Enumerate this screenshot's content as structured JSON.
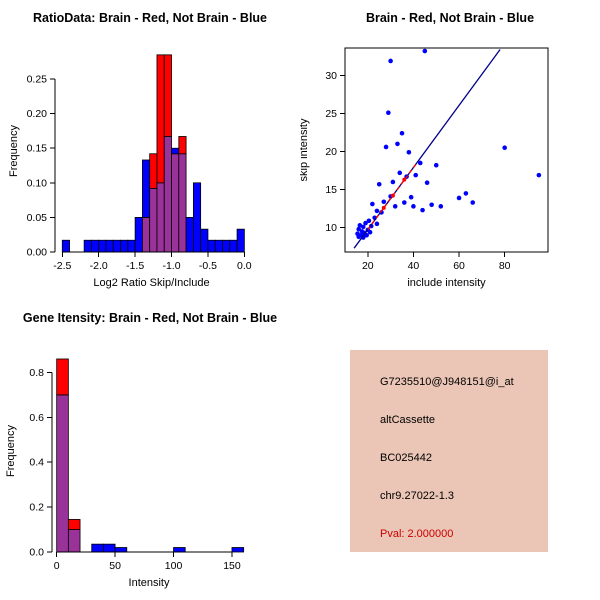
{
  "page": {
    "background": "#ffffff"
  },
  "colors": {
    "brain_red": "#FF0000",
    "not_brain_blue": "#0000FF",
    "overlap_purple": "#993299",
    "fit_line_navy": "#00008B",
    "pval_red": "#CC0000",
    "info_panel_bg": "#EBC6B6",
    "axis_black": "#000000"
  },
  "chart_data": [
    {
      "type": "bar",
      "variant": "overlapping-histograms",
      "title": "RatioData: Brain - Red, Not Brain - Blue",
      "xlabel": "Log2 Ratio Skip/Include",
      "ylabel": "Frequency",
      "xlim": [
        -2.6,
        0.05
      ],
      "ylim": [
        0,
        0.292
      ],
      "bin_width": 0.1,
      "xticks": [
        {
          "v": -2.5,
          "label": "-2.5"
        },
        {
          "v": -2.0,
          "label": "-2.0"
        },
        {
          "v": -1.5,
          "label": "-1.5"
        },
        {
          "v": -1.0,
          "label": "-1.0"
        },
        {
          "v": -0.5,
          "label": "-0.5"
        },
        {
          "v": 0.0,
          "label": "0.0"
        }
      ],
      "yticks": [
        {
          "v": 0.0,
          "label": "0.00"
        },
        {
          "v": 0.05,
          "label": "0.05"
        },
        {
          "v": 0.1,
          "label": "0.10"
        },
        {
          "v": 0.15,
          "label": "0.15"
        },
        {
          "v": 0.2,
          "label": "0.20"
        },
        {
          "v": 0.25,
          "label": "0.25"
        }
      ],
      "bins": [
        {
          "x": -2.5,
          "blue": 0.017,
          "red": 0
        },
        {
          "x": -2.2,
          "blue": 0.017,
          "red": 0
        },
        {
          "x": -2.1,
          "blue": 0.017,
          "red": 0
        },
        {
          "x": -2.0,
          "blue": 0.017,
          "red": 0
        },
        {
          "x": -1.9,
          "blue": 0.017,
          "red": 0
        },
        {
          "x": -1.8,
          "blue": 0.017,
          "red": 0
        },
        {
          "x": -1.7,
          "blue": 0.017,
          "red": 0
        },
        {
          "x": -1.6,
          "blue": 0.017,
          "red": 0
        },
        {
          "x": -1.5,
          "blue": 0.05,
          "red": 0
        },
        {
          "x": -1.4,
          "blue": 0.133,
          "red": 0.05
        },
        {
          "x": -1.3,
          "blue": 0.092,
          "red": 0.142
        },
        {
          "x": -1.2,
          "blue": 0.1,
          "red": 0.285
        },
        {
          "x": -1.1,
          "blue": 0.167,
          "red": 0.285
        },
        {
          "x": -1.0,
          "blue": 0.15,
          "red": 0.142
        },
        {
          "x": -0.9,
          "blue": 0.142,
          "red": 0.167
        },
        {
          "x": -0.8,
          "blue": 0.05,
          "red": 0
        },
        {
          "x": -0.7,
          "blue": 0.1,
          "red": 0
        },
        {
          "x": -0.6,
          "blue": 0.033,
          "red": 0
        },
        {
          "x": -0.5,
          "blue": 0.017,
          "red": 0
        },
        {
          "x": -0.4,
          "blue": 0.017,
          "red": 0
        },
        {
          "x": -0.3,
          "blue": 0.017,
          "red": 0
        },
        {
          "x": -0.2,
          "blue": 0.017,
          "red": 0
        },
        {
          "x": -0.1,
          "blue": 0.033,
          "red": 0
        }
      ]
    },
    {
      "type": "scatter",
      "title": "Brain - Red, Not Brain - Blue",
      "xlabel": "include intensity",
      "ylabel": "skip intensity",
      "xlim": [
        10,
        99
      ],
      "ylim": [
        6.8,
        33.6
      ],
      "box": true,
      "xticks": [
        {
          "v": 20,
          "label": "20"
        },
        {
          "v": 40,
          "label": "40"
        },
        {
          "v": 60,
          "label": "60"
        },
        {
          "v": 80,
          "label": "80"
        }
      ],
      "yticks": [
        {
          "v": 10,
          "label": "10"
        },
        {
          "v": 15,
          "label": "15"
        },
        {
          "v": 20,
          "label": "20"
        },
        {
          "v": 25,
          "label": "25"
        },
        {
          "v": 30,
          "label": "30"
        }
      ],
      "blue_points": [
        [
          15.5,
          9.2
        ],
        [
          16,
          8.8
        ],
        [
          16,
          9.8
        ],
        [
          16.5,
          10.3
        ],
        [
          17,
          9.0
        ],
        [
          17.5,
          9.5
        ],
        [
          18,
          8.7
        ],
        [
          18,
          10.1
        ],
        [
          18.5,
          9.3
        ],
        [
          19,
          10.6
        ],
        [
          19.5,
          9.0
        ],
        [
          20,
          9.7
        ],
        [
          20.5,
          10.9
        ],
        [
          21,
          9.4
        ],
        [
          21.5,
          10.2
        ],
        [
          22,
          13.1
        ],
        [
          23,
          11.3
        ],
        [
          24,
          10.5
        ],
        [
          24,
          12.2
        ],
        [
          25,
          15.7
        ],
        [
          26,
          12.0
        ],
        [
          27,
          13.4
        ],
        [
          28,
          20.6
        ],
        [
          29,
          25.1
        ],
        [
          30,
          31.9
        ],
        [
          30,
          14.1
        ],
        [
          31,
          16.0
        ],
        [
          32,
          12.8
        ],
        [
          33,
          21.0
        ],
        [
          34,
          17.2
        ],
        [
          35,
          22.4
        ],
        [
          36,
          13.3
        ],
        [
          37,
          16.7
        ],
        [
          38,
          19.9
        ],
        [
          39,
          14.0
        ],
        [
          40,
          12.8
        ],
        [
          41,
          16.9
        ],
        [
          43,
          18.5
        ],
        [
          44,
          12.3
        ],
        [
          45,
          33.2
        ],
        [
          46,
          15.9
        ],
        [
          48,
          13.0
        ],
        [
          50,
          18.2
        ],
        [
          52,
          12.8
        ],
        [
          60,
          13.9
        ],
        [
          63,
          14.5
        ],
        [
          66,
          13.3
        ],
        [
          80,
          20.5
        ],
        [
          95,
          16.9
        ]
      ],
      "red_points": [
        [
          27,
          12.6
        ],
        [
          31,
          14.2
        ],
        [
          36,
          16.3
        ]
      ],
      "line": {
        "x1": 14,
        "y1": 7.3,
        "x2": 78,
        "y2": 33.4
      },
      "red_line": {
        "x1": 20,
        "y1": 9.75,
        "x2": 41,
        "y2": 18.3,
        "dash": "4 3"
      }
    },
    {
      "type": "bar",
      "variant": "overlapping-histograms",
      "title": "Gene Itensity: Brain - Red, Not Brain - Blue",
      "xlabel": "Intensity",
      "ylabel": "Frequency",
      "xlim": [
        -4,
        162
      ],
      "ylim": [
        0,
        0.9
      ],
      "bin_width": 10,
      "xticks": [
        {
          "v": 0,
          "label": "0"
        },
        {
          "v": 50,
          "label": "50"
        },
        {
          "v": 100,
          "label": "100"
        },
        {
          "v": 150,
          "label": "150"
        }
      ],
      "yticks": [
        {
          "v": 0.0,
          "label": "0.0"
        },
        {
          "v": 0.2,
          "label": "0.2"
        },
        {
          "v": 0.4,
          "label": "0.4"
        },
        {
          "v": 0.6,
          "label": "0.6"
        },
        {
          "v": 0.8,
          "label": "0.8"
        }
      ],
      "bins": [
        {
          "x": 0,
          "blue": 0.7,
          "red": 0.86
        },
        {
          "x": 10,
          "blue": 0.1,
          "red": 0.145
        },
        {
          "x": 30,
          "blue": 0.035,
          "red": 0
        },
        {
          "x": 40,
          "blue": 0.035,
          "red": 0
        },
        {
          "x": 50,
          "blue": 0.02,
          "red": 0
        },
        {
          "x": 100,
          "blue": 0.02,
          "red": 0
        },
        {
          "x": 150,
          "blue": 0.02,
          "red": 0
        }
      ]
    }
  ],
  "info_panel": {
    "lines": [
      {
        "text": "G7235510@J948151@i_at",
        "color": "#000000"
      },
      {
        "text": "altCassette",
        "color": "#000000"
      },
      {
        "text": "BC025442",
        "color": "#000000"
      },
      {
        "text": "chr9.27022-1.3",
        "color": "#000000"
      },
      {
        "text": "Pval: 2.000000",
        "color": "#CC0000"
      }
    ]
  }
}
